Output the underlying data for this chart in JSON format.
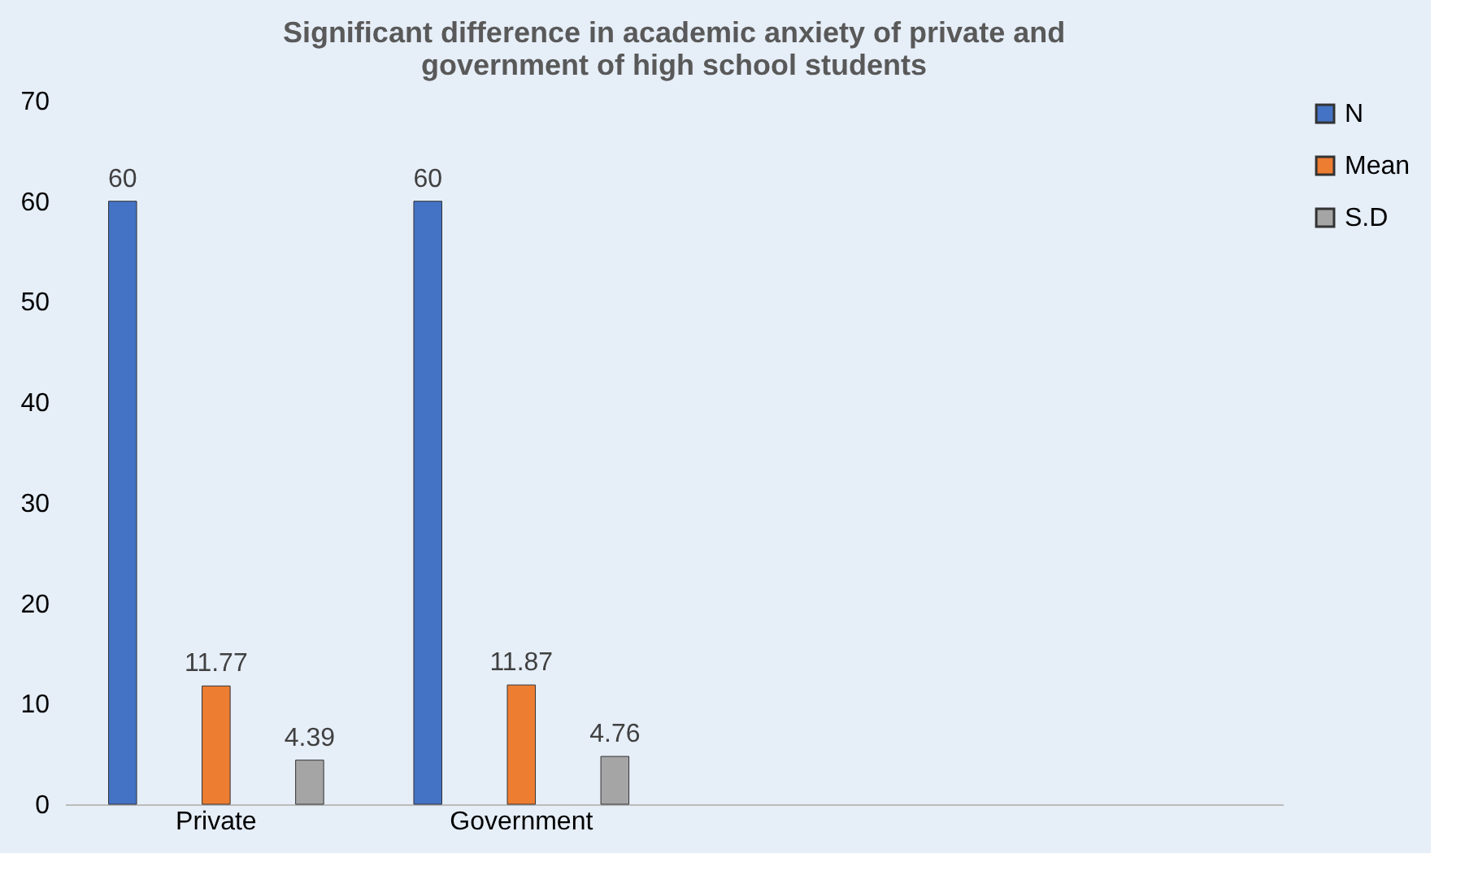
{
  "chart_data": {
    "type": "bar",
    "title": "Significant difference in academic anxiety of private and government of high school students",
    "categories": [
      "Private",
      "Government",
      null,
      null
    ],
    "series": [
      {
        "name": "N",
        "color": "#4472c4",
        "values": [
          60,
          60,
          null,
          null
        ]
      },
      {
        "name": "Mean",
        "color": "#ed7d31",
        "values": [
          11.77,
          11.87,
          null,
          null
        ]
      },
      {
        "name": "S.D",
        "color": "#a5a5a5",
        "values": [
          4.39,
          4.76,
          null,
          null
        ]
      }
    ],
    "ylim": [
      0,
      70
    ],
    "yticks": [
      0,
      10,
      20,
      30,
      40,
      50,
      60,
      70
    ],
    "grid": false,
    "legend": "right",
    "data_labels": true
  }
}
